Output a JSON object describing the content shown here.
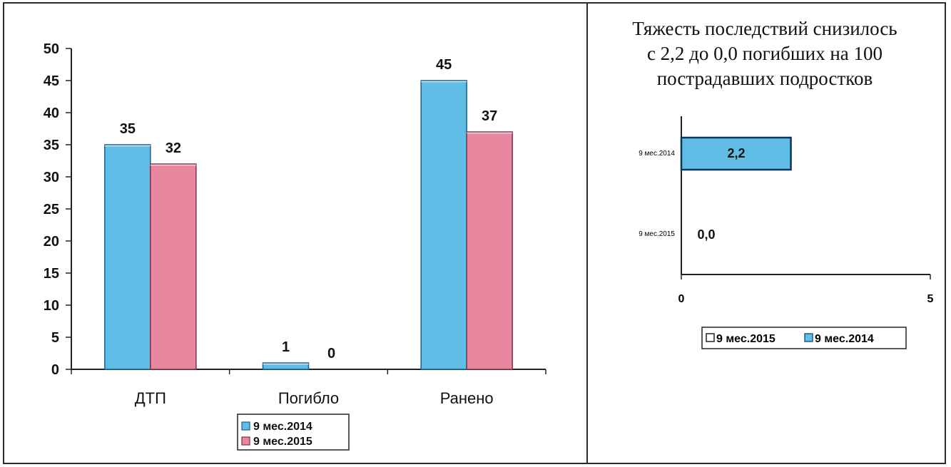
{
  "colors": {
    "series_2014_fill": "#5fbde6",
    "series_2014_stroke": "#1d5f86",
    "series_2015_fill": "#e8879f",
    "series_2015_stroke": "#7a3448",
    "axis": "#222222"
  },
  "chart_data": [
    {
      "type": "bar",
      "orientation": "vertical",
      "title": "",
      "xlabel": "",
      "ylabel": "",
      "categories": [
        "ДТП",
        "Погибло",
        "Ранено"
      ],
      "series": [
        {
          "name": "9 мес.2014",
          "values": [
            35,
            1,
            45
          ],
          "labels": [
            "35",
            "1",
            "45"
          ]
        },
        {
          "name": "9 мес.2015",
          "values": [
            32,
            0,
            37
          ],
          "labels": [
            "32",
            "0",
            "37"
          ]
        }
      ],
      "ylim": [
        0,
        50
      ],
      "yticks": [
        0,
        5,
        10,
        15,
        20,
        25,
        30,
        35,
        40,
        45,
        50
      ],
      "grid": false,
      "legend": {
        "placement": "bottom-center",
        "entries": [
          "9 мес.2014",
          "9 мес.2015"
        ]
      }
    },
    {
      "type": "bar",
      "orientation": "horizontal",
      "title_lines": [
        "Тяжесть последствий снизилось",
        "с 2,2 до 0,0 погибших на 100",
        "пострадавших подростков"
      ],
      "xlabel": "",
      "ylabel": "",
      "categories": [
        "9 мес.2014",
        "9 мес.2015"
      ],
      "series": [
        {
          "name": "9 мес.2015",
          "values": [
            null,
            0.0
          ],
          "labels": [
            "",
            "0,0"
          ]
        },
        {
          "name": "9 мес.2014",
          "values": [
            2.2,
            null
          ],
          "labels": [
            "2,2",
            ""
          ]
        }
      ],
      "xlim": [
        0,
        5
      ],
      "xticks": [
        "0",
        "5"
      ],
      "grid": false,
      "legend": {
        "placement": "bottom-center",
        "entries": [
          "9 мес.2015",
          "9 мес.2014"
        ]
      }
    }
  ]
}
